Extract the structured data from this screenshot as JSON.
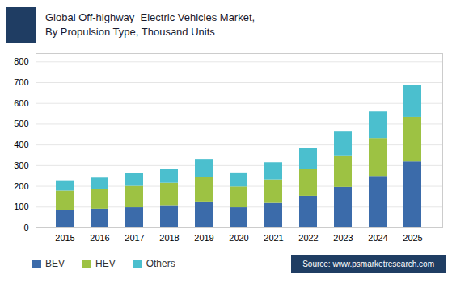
{
  "chart_data": {
    "type": "bar",
    "stacked": true,
    "title": "Global Off-highway  Electric Vehicles Market,",
    "subtitle": "By Propulsion Type, Thousand Units",
    "annotations": [
      "Source: www.psmarketresearch.com"
    ],
    "categories": [
      "2015",
      "2016",
      "2017",
      "2018",
      "2019",
      "2020",
      "2021",
      "2022",
      "2023",
      "2024",
      "2025"
    ],
    "series": [
      {
        "name": "BEV",
        "color": "#3b6baa",
        "values": [
          82,
          90,
          97,
          107,
          125,
          97,
          118,
          152,
          195,
          248,
          318
        ]
      },
      {
        "name": "HEV",
        "color": "#9dc243",
        "values": [
          95,
          95,
          103,
          108,
          118,
          100,
          113,
          130,
          152,
          183,
          215
        ]
      },
      {
        "name": "Others",
        "color": "#4bbfce",
        "values": [
          50,
          55,
          62,
          68,
          87,
          68,
          83,
          100,
          115,
          128,
          152
        ]
      }
    ],
    "ylim": [
      0,
      840
    ],
    "yticks": [
      0,
      100,
      200,
      300,
      400,
      500,
      600,
      700,
      800
    ],
    "grid": true,
    "legend": "bottom"
  }
}
